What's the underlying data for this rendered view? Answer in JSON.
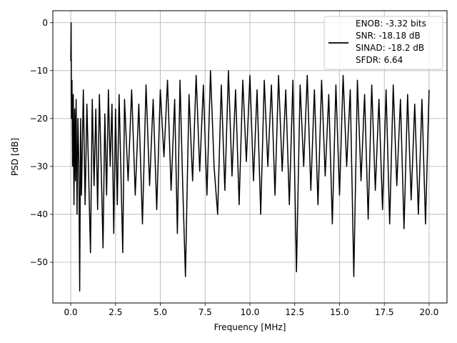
{
  "chart_data": {
    "type": "line",
    "title": "",
    "xlabel": "Frequency [MHz]",
    "ylabel": "PSD [dB]",
    "xlim": [
      -1.0,
      21.0
    ],
    "ylim": [
      -58.5,
      2.5
    ],
    "xticks": [
      0.0,
      2.5,
      5.0,
      7.5,
      10.0,
      12.5,
      15.0,
      17.5,
      20.0
    ],
    "xtick_labels": [
      "0.0",
      "2.5",
      "5.0",
      "7.5",
      "10.0",
      "12.5",
      "15.0",
      "17.5",
      "20.0"
    ],
    "yticks": [
      0,
      -10,
      -20,
      -30,
      -40,
      -50
    ],
    "ytick_labels": [
      "0",
      "−10",
      "−20",
      "−30",
      "−40",
      "−50"
    ],
    "grid": true,
    "line_color": "#000000",
    "legend": {
      "placement": "top-right",
      "entries": [
        "ENOB: -3.32 bits",
        "SNR: -18.18 dB",
        "SINAD: -18.2 dB",
        "SFDR: 6.64"
      ]
    },
    "series": [
      {
        "x": [
          0.0,
          0.02,
          0.04,
          0.07,
          0.1,
          0.14,
          0.18,
          0.22,
          0.26,
          0.3,
          0.35,
          0.4,
          0.45,
          0.5,
          0.55,
          0.6,
          0.7,
          0.8,
          0.9,
          1.0,
          1.1,
          1.2,
          1.3,
          1.4,
          1.5,
          1.6,
          1.7,
          1.8,
          1.9,
          2.0,
          2.1,
          2.2,
          2.3,
          2.4,
          2.5,
          2.6,
          2.7,
          2.8,
          2.9,
          3.0,
          3.2,
          3.4,
          3.6,
          3.8,
          4.0,
          4.2,
          4.4,
          4.6,
          4.8,
          5.0,
          5.2,
          5.4,
          5.6,
          5.8,
          5.95,
          6.1,
          6.25,
          6.4,
          6.6,
          6.8,
          7.0,
          7.2,
          7.4,
          7.6,
          7.8,
          8.0,
          8.2,
          8.4,
          8.6,
          8.8,
          9.0,
          9.2,
          9.4,
          9.6,
          9.8,
          10.0,
          10.2,
          10.4,
          10.6,
          10.8,
          11.0,
          11.2,
          11.4,
          11.6,
          11.8,
          12.0,
          12.2,
          12.4,
          12.6,
          12.8,
          13.0,
          13.2,
          13.4,
          13.6,
          13.8,
          14.0,
          14.2,
          14.4,
          14.6,
          14.8,
          15.0,
          15.2,
          15.4,
          15.6,
          15.8,
          16.0,
          16.2,
          16.4,
          16.6,
          16.8,
          17.0,
          17.2,
          17.4,
          17.6,
          17.8,
          18.0,
          18.2,
          18.4,
          18.6,
          18.8,
          19.0,
          19.2,
          19.4,
          19.6,
          19.8,
          20.0
        ],
        "y": [
          -8,
          0,
          -20,
          -12,
          -30,
          -15,
          -38,
          -18,
          -33,
          -16,
          -40,
          -20,
          -29,
          -56,
          -20,
          -36,
          -14,
          -38,
          -17,
          -32,
          -48,
          -16,
          -34,
          -18,
          -39,
          -15,
          -30,
          -47,
          -19,
          -36,
          -14,
          -30,
          -17,
          -44,
          -18,
          -38,
          -15,
          -31,
          -48,
          -16,
          -33,
          -14,
          -36,
          -17,
          -42,
          -13,
          -34,
          -16,
          -39,
          -14,
          -28,
          -12,
          -35,
          -16,
          -44,
          -12,
          -34,
          -53,
          -15,
          -33,
          -11,
          -31,
          -13,
          -36,
          -10,
          -30,
          -40,
          -13,
          -35,
          -10,
          -32,
          -14,
          -38,
          -12,
          -29,
          -11,
          -33,
          -14,
          -40,
          -12,
          -30,
          -13,
          -36,
          -11,
          -31,
          -14,
          -38,
          -12,
          -52,
          -13,
          -30,
          -11,
          -35,
          -14,
          -38,
          -12,
          -32,
          -15,
          -42,
          -13,
          -36,
          -11,
          -30,
          -14,
          -53,
          -12,
          -33,
          -15,
          -41,
          -13,
          -35,
          -16,
          -39,
          -14,
          -42,
          -13,
          -34,
          -16,
          -43,
          -15,
          -37,
          -17,
          -40,
          -16,
          -42,
          -14
        ]
      }
    ]
  }
}
